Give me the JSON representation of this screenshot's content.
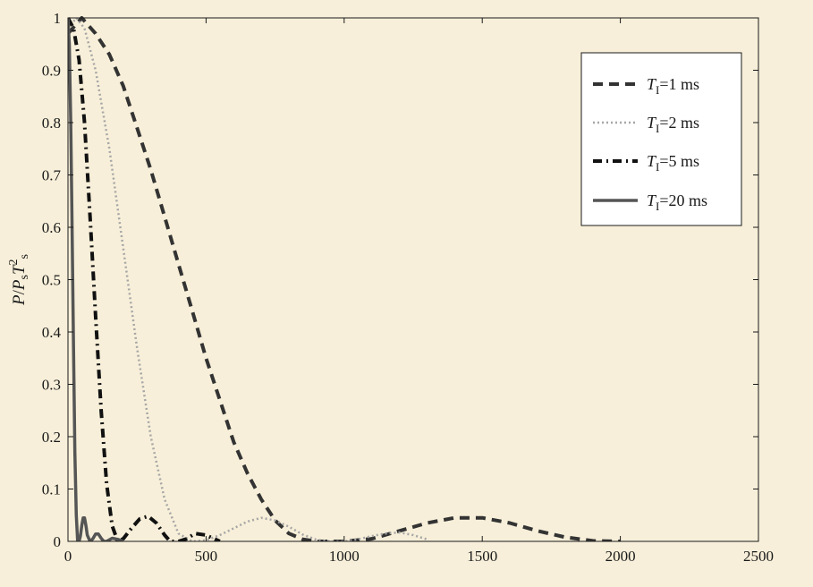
{
  "colors": {
    "background": "#f7efd9",
    "axes_frame": "#1a1a1a"
  },
  "chart_data": {
    "type": "line",
    "title": "",
    "xlabel": "",
    "ylabel_parts": [
      "P",
      "/",
      "P",
      "s",
      "T",
      "2",
      "s"
    ],
    "xlim": [
      0,
      2500
    ],
    "ylim": [
      0,
      1
    ],
    "x_ticks": [
      0,
      500,
      1000,
      1500,
      2000,
      2500
    ],
    "y_ticks": [
      0,
      0.1,
      0.2,
      0.3,
      0.4,
      0.5,
      0.6,
      0.7,
      0.8,
      0.9,
      1
    ],
    "grid": false,
    "legend_position": "top-right",
    "series": [
      {
        "legend": {
          "T": "T",
          "sub": "I",
          "rest": "=1 ms"
        },
        "color": "#333333",
        "style": "dashed",
        "x": [
          0,
          50,
          100,
          150,
          200,
          250,
          300,
          350,
          400,
          450,
          500,
          550,
          600,
          650,
          700,
          750,
          800,
          850,
          900,
          950,
          1000,
          1100,
          1200,
          1300,
          1400,
          1500,
          1600,
          1700,
          1800,
          1900,
          2000
        ],
        "y": [
          0.97,
          1.0,
          0.97,
          0.93,
          0.87,
          0.79,
          0.71,
          0.62,
          0.53,
          0.44,
          0.35,
          0.27,
          0.19,
          0.13,
          0.08,
          0.04,
          0.015,
          0.004,
          0.0,
          0.0,
          0.0,
          0.005,
          0.02,
          0.035,
          0.045,
          0.045,
          0.035,
          0.02,
          0.008,
          0.001,
          0.0
        ]
      },
      {
        "legend": {
          "T": "T",
          "sub": "I",
          "rest": "=2 ms"
        },
        "color": "#a6a6a6",
        "style": "dotted",
        "x": [
          0,
          30,
          60,
          100,
          150,
          200,
          250,
          300,
          350,
          400,
          450,
          500,
          550,
          600,
          650,
          700,
          750,
          800,
          850,
          900,
          950,
          1000,
          1050,
          1100,
          1150,
          1200,
          1250,
          1300
        ],
        "y": [
          0.98,
          1.0,
          0.98,
          0.9,
          0.75,
          0.56,
          0.37,
          0.2,
          0.08,
          0.015,
          0.0,
          0.002,
          0.012,
          0.025,
          0.038,
          0.045,
          0.04,
          0.028,
          0.013,
          0.003,
          0.0,
          0.0,
          0.004,
          0.01,
          0.015,
          0.017,
          0.012,
          0.004
        ]
      },
      {
        "legend": {
          "T": "T",
          "sub": "I",
          "rest": "=5 ms"
        },
        "color": "#111111",
        "style": "dashdot",
        "x": [
          0,
          20,
          40,
          60,
          80,
          100,
          120,
          140,
          160,
          180,
          200,
          230,
          260,
          290,
          320,
          350,
          370,
          400,
          430,
          460,
          500,
          550
        ],
        "y": [
          1.0,
          0.98,
          0.92,
          0.8,
          0.62,
          0.43,
          0.25,
          0.11,
          0.03,
          0.0,
          0.005,
          0.025,
          0.043,
          0.048,
          0.035,
          0.012,
          0.0,
          0.0,
          0.005,
          0.015,
          0.012,
          0.0
        ]
      },
      {
        "legend": {
          "T": "T",
          "sub": "I",
          "rest": "=20 ms"
        },
        "color": "#555555",
        "style": "solid",
        "x": [
          0,
          5,
          10,
          15,
          20,
          25,
          30,
          35,
          40,
          45,
          50,
          55,
          60,
          65,
          70,
          80,
          90,
          100,
          110,
          120,
          130,
          140,
          160,
          180,
          200
        ],
        "y": [
          1.0,
          0.95,
          0.8,
          0.6,
          0.37,
          0.17,
          0.05,
          0.0,
          0.0,
          0.01,
          0.03,
          0.045,
          0.045,
          0.03,
          0.012,
          0.0,
          0.005,
          0.014,
          0.014,
          0.006,
          0.0,
          0.0,
          0.006,
          0.004,
          0.0
        ]
      }
    ]
  }
}
